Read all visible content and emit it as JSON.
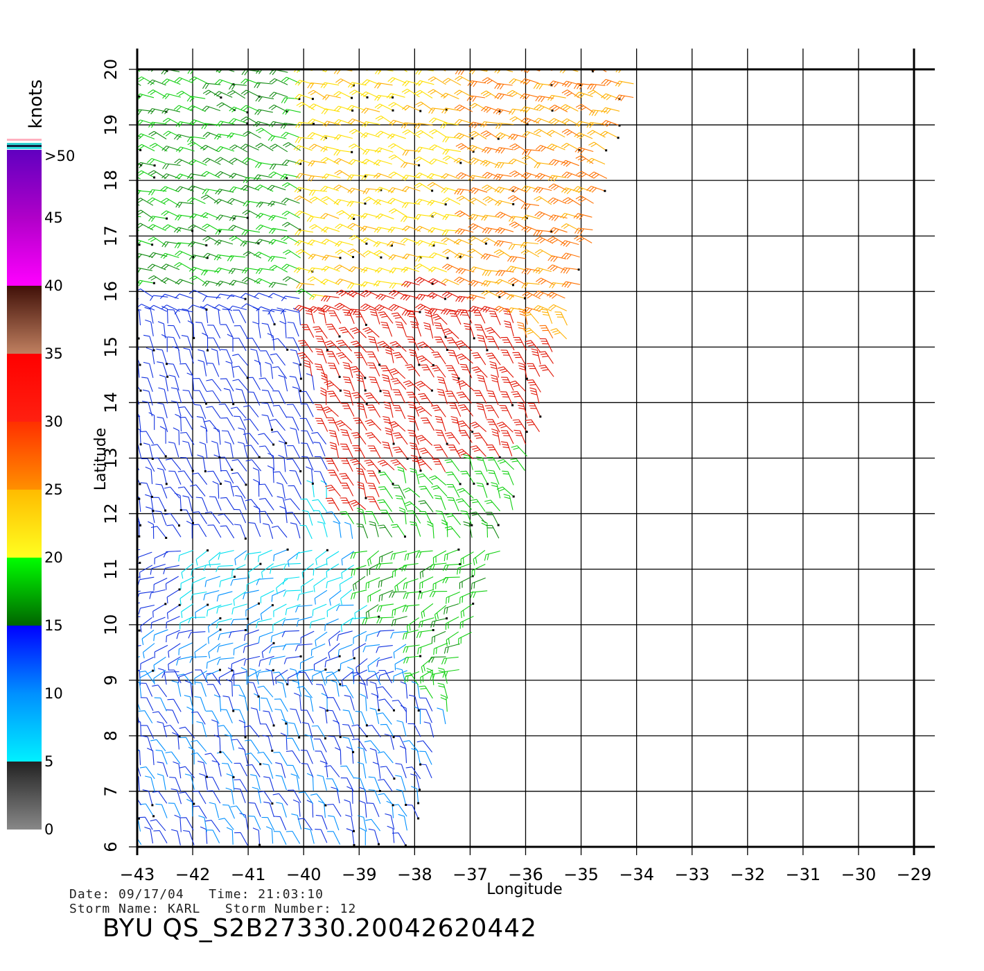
{
  "chart_data": {
    "type": "wind-barb-map",
    "xlabel": "Longitude",
    "ylabel": "Latitude",
    "x_ticks": [
      -43,
      -42,
      -41,
      -40,
      -39,
      -38,
      -37,
      -36,
      -35,
      -34,
      -33,
      -32,
      -31,
      -30,
      -29
    ],
    "y_ticks": [
      6,
      7,
      8,
      9,
      10,
      11,
      12,
      13,
      14,
      15,
      16,
      17,
      18,
      19,
      20
    ],
    "xlim": [
      -43,
      -29
    ],
    "ylim": [
      6,
      20
    ],
    "grid": true,
    "colorbar": {
      "unit": "knots",
      "labels": [
        "0",
        "5",
        "10",
        "15",
        "20",
        "25",
        "30",
        "35",
        "40",
        "45",
        ">50"
      ],
      "stops": [
        {
          "value": 0,
          "color": "#888888"
        },
        {
          "value": 5,
          "color": "#222222"
        },
        {
          "value": 5,
          "color": "#00f0ff"
        },
        {
          "value": 10,
          "color": "#0090ff"
        },
        {
          "value": 15,
          "color": "#0000ff"
        },
        {
          "value": 15,
          "color": "#006400"
        },
        {
          "value": 20,
          "color": "#00ff00"
        },
        {
          "value": 20,
          "color": "#ffff20"
        },
        {
          "value": 25,
          "color": "#ffbb00"
        },
        {
          "value": 25,
          "color": "#ff9000"
        },
        {
          "value": 30,
          "color": "#ff3000"
        },
        {
          "value": 30,
          "color": "#ff2010"
        },
        {
          "value": 35,
          "color": "#ff0000"
        },
        {
          "value": 35,
          "color": "#c08060"
        },
        {
          "value": 40,
          "color": "#401008"
        },
        {
          "value": 40,
          "color": "#ff00ff"
        },
        {
          "value": 45,
          "color": "#b000c8"
        },
        {
          "value": 50,
          "color": "#6000c0"
        }
      ],
      "top_bands": [
        "#ffb0c0",
        "#ffffff",
        "#30d0d0",
        "#102040",
        "#30e0e0"
      ]
    },
    "swath": {
      "left_edge": [
        [
          -42.9,
          6
        ],
        [
          -43.0,
          9
        ],
        [
          -43.0,
          20
        ]
      ],
      "right_edge": [
        [
          -38.0,
          6
        ],
        [
          -37.2,
          9
        ],
        [
          -36.0,
          12.5
        ],
        [
          -35.0,
          16
        ],
        [
          -34.0,
          19.7
        ],
        [
          -33.9,
          20.1
        ]
      ]
    },
    "wind_fields": [
      {
        "name": "northwest-green-field",
        "lon": [
          -43,
          -40
        ],
        "lat": [
          16,
          20
        ],
        "speed_knots": 17
      },
      {
        "name": "north-yellow-field",
        "lon": [
          -40,
          -37
        ],
        "lat": [
          16.5,
          20
        ],
        "speed_knots": 22
      },
      {
        "name": "northeast-orange-field",
        "lon": [
          -37,
          -34
        ],
        "lat": [
          15,
          20
        ],
        "speed_knots": 26
      },
      {
        "name": "red-band",
        "lon": [
          -39.5,
          -36
        ],
        "lat": [
          12,
          16
        ],
        "speed_knots": 32
      },
      {
        "name": "western-blue-field",
        "lon": [
          -43,
          -40
        ],
        "lat": [
          10,
          16
        ],
        "speed_knots": 13
      },
      {
        "name": "central-green-field",
        "lon": [
          -38.5,
          -36
        ],
        "lat": [
          10,
          13
        ],
        "speed_knots": 18
      },
      {
        "name": "southwest-cyan-field",
        "lon": [
          -42,
          -39.5
        ],
        "lat": [
          10,
          11.5
        ],
        "speed_knots": 7
      },
      {
        "name": "southern-blue-field",
        "lon": [
          -43,
          -38
        ],
        "lat": [
          6,
          10
        ],
        "speed_knots": 11
      }
    ]
  },
  "footer": {
    "line1": "Date: 09/17/04   Time: 21:03:10",
    "line2": "Storm Name: KARL   Storm Number: 12",
    "title": "BYU QS_S2B27330.20042620442"
  }
}
